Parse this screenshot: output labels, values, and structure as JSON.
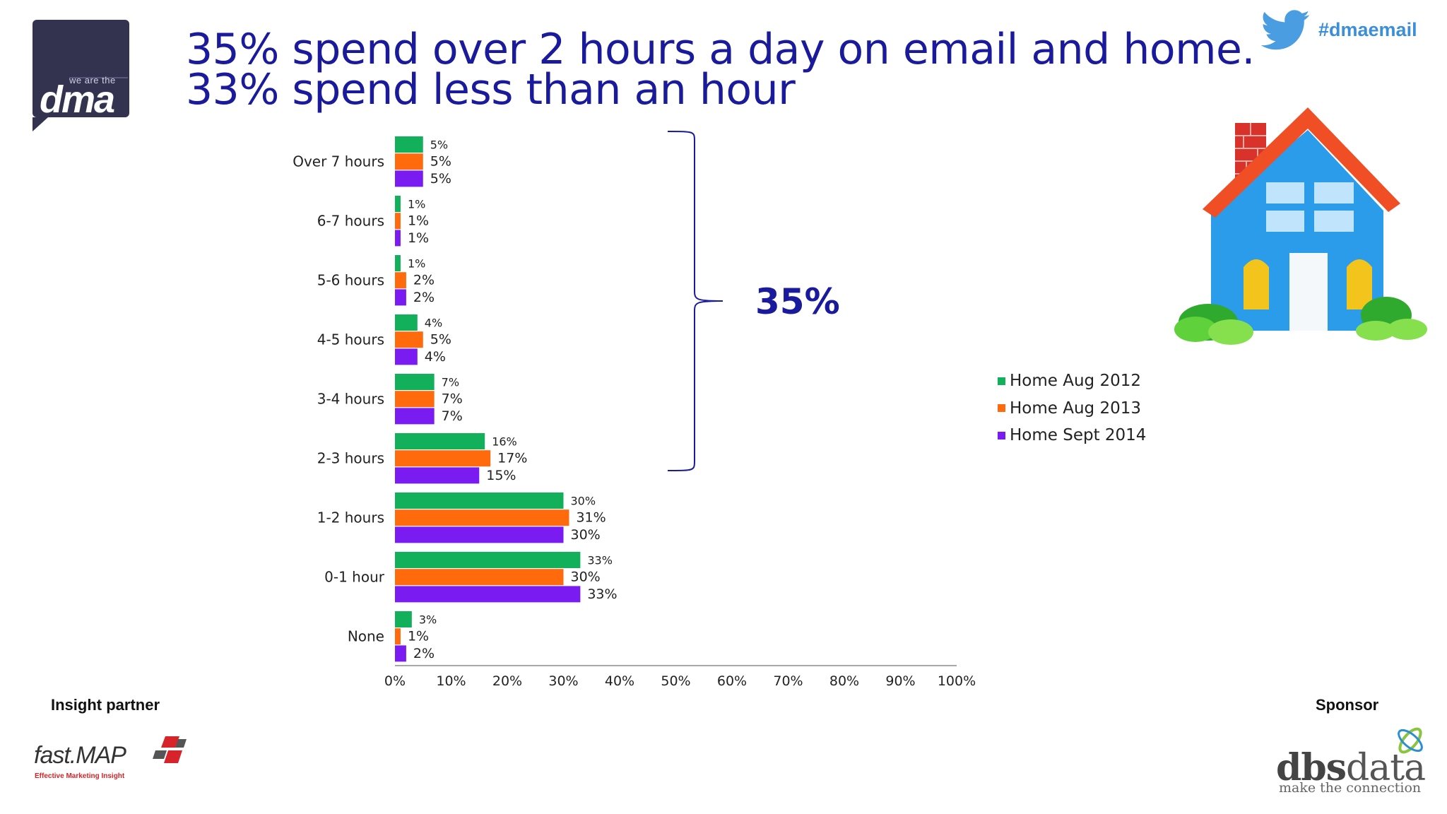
{
  "header": {
    "title_line1": "35% spend over 2 hours a day on email and home.",
    "title_line2": "33% spend less than an hour",
    "logo_tag": "we are the",
    "logo_word": "dma",
    "hashtag": "#dmaemail"
  },
  "callout": {
    "text": "35%"
  },
  "footer": {
    "partner_label": "Insight partner",
    "sponsor_label": "Sponsor",
    "partner_name": "fast.MAP",
    "partner_tagline": "Effective Marketing Insight",
    "sponsor_name_bold": "dbs",
    "sponsor_name_rest": "data",
    "sponsor_tagline": "make the connection"
  },
  "colors": {
    "series": [
      "#12b05a",
      "#ff6a0c",
      "#7a1bf2"
    ],
    "title": "#1a1a9c",
    "hashtag": "#3b8fd9"
  },
  "icons": [
    "twitter-bird-icon",
    "house-illustration",
    "dma-logo",
    "fastmap-logo",
    "dbsdata-logo"
  ],
  "chart_data": {
    "type": "bar",
    "orientation": "horizontal",
    "categories": [
      "Over 7 hours",
      "6-7 hours",
      "5-6 hours",
      "4-5 hours",
      "3-4 hours",
      "2-3 hours",
      "1-2 hours",
      "0-1 hour",
      "None"
    ],
    "series": [
      {
        "name": "Home Aug 2012",
        "values": [
          5,
          1,
          1,
          4,
          7,
          16,
          30,
          33,
          3
        ],
        "labels": [
          "5%",
          "1%",
          "1%",
          "4%",
          "7%",
          "16%",
          "30%",
          "33%",
          "3%"
        ]
      },
      {
        "name": "Home Aug 2013",
        "values": [
          5,
          1,
          2,
          5,
          7,
          17,
          31,
          30,
          1
        ],
        "labels": [
          "5%",
          "1%",
          "2%",
          "5%",
          "7%",
          "17%",
          "31%",
          "30%",
          "1%"
        ]
      },
      {
        "name": "Home Sept 2014",
        "values": [
          5,
          1,
          2,
          4,
          7,
          15,
          30,
          33,
          2
        ],
        "labels": [
          "5%",
          "1%",
          "2%",
          "4%",
          "7%",
          "15%",
          "30%",
          "33%",
          "2%"
        ]
      }
    ],
    "xticks": [
      "0%",
      "10%",
      "20%",
      "30%",
      "40%",
      "50%",
      "60%",
      "70%",
      "80%",
      "90%",
      "100%"
    ],
    "xlim": [
      0,
      100
    ],
    "legend_position": "right",
    "grid": false,
    "bracket_label": "35%",
    "bracket_spans": [
      "Over 7 hours",
      "6-7 hours",
      "5-6 hours",
      "4-5 hours",
      "3-4 hours",
      "2-3 hours"
    ]
  }
}
